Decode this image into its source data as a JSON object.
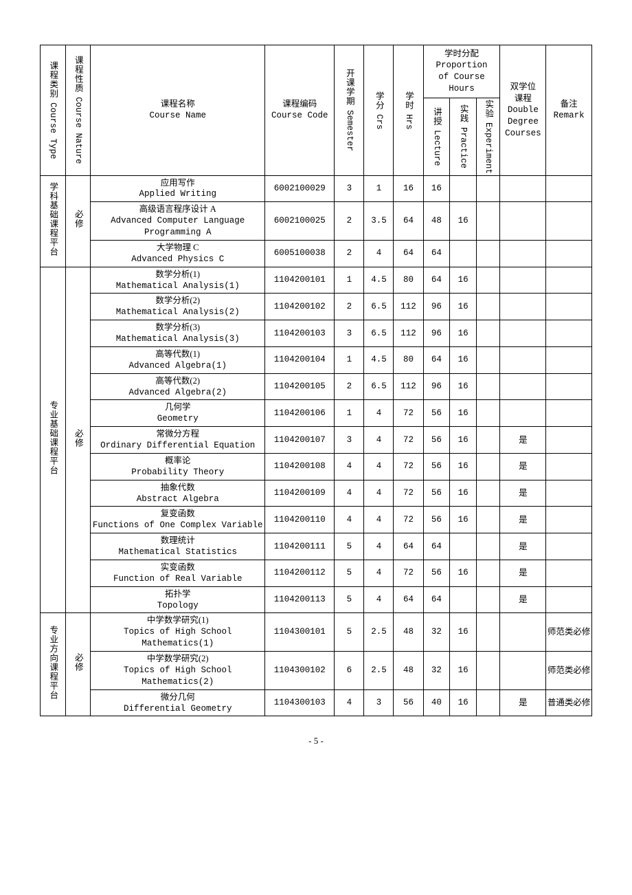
{
  "header": {
    "course_type": {
      "cn": "课程类别",
      "en": "Course Type"
    },
    "course_nature": {
      "cn": "课程性质",
      "en": "Course Nature"
    },
    "course_name": {
      "cn": "课程名称",
      "en": "Course Name"
    },
    "course_code": {
      "cn": "课程编码",
      "en": "Course Code"
    },
    "semester": {
      "cn": "开课学期",
      "en": "Semester"
    },
    "crs": {
      "cn": "学分",
      "en": "Crs"
    },
    "hrs": {
      "cn": "学时",
      "en": "Hrs"
    },
    "proportion": {
      "cn": "学时分配",
      "en1": "Proportion",
      "en2": "of Course",
      "en3": "Hours"
    },
    "lecture": {
      "cn": "讲授",
      "en": "Lecture"
    },
    "practice": {
      "cn": "实践",
      "en": "Practice"
    },
    "experiment": {
      "cn": "实验",
      "en": "Experiment"
    },
    "double_degree": {
      "cn1": "双学位",
      "cn2": "课程",
      "en1": "Double",
      "en2": "Degree",
      "en3": "Courses"
    },
    "remark": {
      "cn": "备注",
      "en": "Remark"
    }
  },
  "groups": [
    {
      "type_label_cn": "学科基础课程平台",
      "nature_label_cn": "必修",
      "rows": [
        {
          "name_cn": "应用写作",
          "name_en": "Applied Writing",
          "code": "6002100029",
          "sem": "3",
          "crs": "1",
          "hrs": "16",
          "lec": "16",
          "prac": "",
          "exp": "",
          "dd": "",
          "rem": ""
        },
        {
          "name_cn": "高级语言程序设计 A",
          "name_en": "Advanced Computer Language Programming A",
          "code": "6002100025",
          "sem": "2",
          "crs": "3.5",
          "hrs": "64",
          "lec": "48",
          "prac": "16",
          "exp": "",
          "dd": "",
          "rem": ""
        },
        {
          "name_cn": "大学物理 C",
          "name_en": "Advanced Physics C",
          "code": "6005100038",
          "sem": "2",
          "crs": "4",
          "hrs": "64",
          "lec": "64",
          "prac": "",
          "exp": "",
          "dd": "",
          "rem": ""
        }
      ]
    },
    {
      "type_label_cn": "专业基础课程平台",
      "nature_label_cn": "必修",
      "rows": [
        {
          "name_cn": "数学分析(1)",
          "name_en": "Mathematical Analysis(1)",
          "code": "1104200101",
          "sem": "1",
          "crs": "4.5",
          "hrs": "80",
          "lec": "64",
          "prac": "16",
          "exp": "",
          "dd": "",
          "rem": ""
        },
        {
          "name_cn": "数学分析(2)",
          "name_en": "Mathematical Analysis(2)",
          "code": "1104200102",
          "sem": "2",
          "crs": "6.5",
          "hrs": "112",
          "lec": "96",
          "prac": "16",
          "exp": "",
          "dd": "",
          "rem": ""
        },
        {
          "name_cn": "数学分析(3)",
          "name_en": "Mathematical Analysis(3)",
          "code": "1104200103",
          "sem": "3",
          "crs": "6.5",
          "hrs": "112",
          "lec": "96",
          "prac": "16",
          "exp": "",
          "dd": "",
          "rem": ""
        },
        {
          "name_cn": "高等代数(1)",
          "name_en": "Advanced Algebra(1)",
          "code": "1104200104",
          "sem": "1",
          "crs": "4.5",
          "hrs": "80",
          "lec": "64",
          "prac": "16",
          "exp": "",
          "dd": "",
          "rem": ""
        },
        {
          "name_cn": "高等代数(2)",
          "name_en": "Advanced Algebra(2)",
          "code": "1104200105",
          "sem": "2",
          "crs": "6.5",
          "hrs": "112",
          "lec": "96",
          "prac": "16",
          "exp": "",
          "dd": "",
          "rem": ""
        },
        {
          "name_cn": "几何学",
          "name_en": "Geometry",
          "code": "1104200106",
          "sem": "1",
          "crs": "4",
          "hrs": "72",
          "lec": "56",
          "prac": "16",
          "exp": "",
          "dd": "",
          "rem": ""
        },
        {
          "name_cn": "常微分方程",
          "name_en": "Ordinary Differential Equation",
          "code": "1104200107",
          "sem": "3",
          "crs": "4",
          "hrs": "72",
          "lec": "56",
          "prac": "16",
          "exp": "",
          "dd": "是",
          "rem": ""
        },
        {
          "name_cn": "概率论",
          "name_en": "Probability Theory",
          "code": "1104200108",
          "sem": "4",
          "crs": "4",
          "hrs": "72",
          "lec": "56",
          "prac": "16",
          "exp": "",
          "dd": "是",
          "rem": ""
        },
        {
          "name_cn": "抽象代数",
          "name_en": "Abstract Algebra",
          "code": "1104200109",
          "sem": "4",
          "crs": "4",
          "hrs": "72",
          "lec": "56",
          "prac": "16",
          "exp": "",
          "dd": "是",
          "rem": ""
        },
        {
          "name_cn": "复变函数",
          "name_en": "Functions of One Complex Variable",
          "code": "1104200110",
          "sem": "4",
          "crs": "4",
          "hrs": "72",
          "lec": "56",
          "prac": "16",
          "exp": "",
          "dd": "是",
          "rem": ""
        },
        {
          "name_cn": "数理统计",
          "name_en": "Mathematical Statistics",
          "code": "1104200111",
          "sem": "5",
          "crs": "4",
          "hrs": "64",
          "lec": "64",
          "prac": "",
          "exp": "",
          "dd": "是",
          "rem": ""
        },
        {
          "name_cn": "实变函数",
          "name_en": "Function of Real Variable",
          "code": "1104200112",
          "sem": "5",
          "crs": "4",
          "hrs": "72",
          "lec": "56",
          "prac": "16",
          "exp": "",
          "dd": "是",
          "rem": ""
        },
        {
          "name_cn": "拓扑学",
          "name_en": "Topology",
          "code": "1104200113",
          "sem": "5",
          "crs": "4",
          "hrs": "64",
          "lec": "64",
          "prac": "",
          "exp": "",
          "dd": "是",
          "rem": ""
        }
      ]
    },
    {
      "type_label_cn": "专业方向课程平台",
      "nature_label_cn": "必修",
      "rows": [
        {
          "name_cn": "中学数学研究(1)",
          "name_en": "Topics of High School Mathematics(1)",
          "code": "1104300101",
          "sem": "5",
          "crs": "2.5",
          "hrs": "48",
          "lec": "32",
          "prac": "16",
          "exp": "",
          "dd": "",
          "rem": "师范类必修"
        },
        {
          "name_cn": "中学数学研究(2)",
          "name_en": "Topics of High School Mathematics(2)",
          "code": "1104300102",
          "sem": "6",
          "crs": "2.5",
          "hrs": "48",
          "lec": "32",
          "prac": "16",
          "exp": "",
          "dd": "",
          "rem": "师范类必修"
        },
        {
          "name_cn": "微分几何",
          "name_en": "Differential Geometry",
          "code": "1104300103",
          "sem": "4",
          "crs": "3",
          "hrs": "56",
          "lec": "40",
          "prac": "16",
          "exp": "",
          "dd": "是",
          "rem": "普通类必修"
        }
      ]
    }
  ],
  "page_number": "- 5 -"
}
